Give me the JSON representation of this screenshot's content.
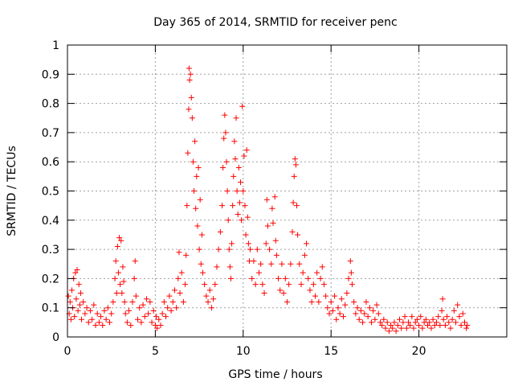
{
  "chart_data": {
    "type": "scatter",
    "title": "Day 365 of 2014, SRMTID for receiver penc",
    "xlabel": "GPS time / hours",
    "ylabel": "SRMTID / TECUs",
    "xlim": [
      0,
      25
    ],
    "ylim": [
      0,
      1
    ],
    "xticks": [
      0,
      5,
      10,
      15,
      20
    ],
    "xtick_labels": [
      "0",
      "5",
      "10",
      "15",
      "20"
    ],
    "yticks": [
      0,
      0.1,
      0.2,
      0.3,
      0.4,
      0.5,
      0.6,
      0.7,
      0.8,
      0.9,
      1
    ],
    "ytick_labels": [
      "0",
      "0.1",
      "0.2",
      "0.3",
      "0.4",
      "0.5",
      "0.6",
      "0.7",
      "0.8",
      "0.9",
      "1"
    ],
    "grid": true,
    "marker": "+",
    "color": "#ff0000",
    "series": [
      {
        "name": "SRMTID",
        "points": [
          [
            0.05,
            0.14
          ],
          [
            0.1,
            0.08
          ],
          [
            0.15,
            0.12
          ],
          [
            0.2,
            0.06
          ],
          [
            0.25,
            0.16
          ],
          [
            0.3,
            0.1
          ],
          [
            0.35,
            0.2
          ],
          [
            0.4,
            0.07
          ],
          [
            0.45,
            0.22
          ],
          [
            0.5,
            0.13
          ],
          [
            0.55,
            0.23
          ],
          [
            0.6,
            0.09
          ],
          [
            0.65,
            0.18
          ],
          [
            0.7,
            0.11
          ],
          [
            0.75,
            0.15
          ],
          [
            0.8,
            0.06
          ],
          [
            0.9,
            0.12
          ],
          [
            1.0,
            0.08
          ],
          [
            1.1,
            0.1
          ],
          [
            1.2,
            0.05
          ],
          [
            1.3,
            0.09
          ],
          [
            1.4,
            0.06
          ],
          [
            1.5,
            0.11
          ],
          [
            1.6,
            0.04
          ],
          [
            1.7,
            0.08
          ],
          [
            1.8,
            0.05
          ],
          [
            1.9,
            0.07
          ],
          [
            2.0,
            0.04
          ],
          [
            2.1,
            0.09
          ],
          [
            2.2,
            0.06
          ],
          [
            2.3,
            0.1
          ],
          [
            2.4,
            0.05
          ],
          [
            2.5,
            0.08
          ],
          [
            2.6,
            0.12
          ],
          [
            2.7,
            0.2
          ],
          [
            2.75,
            0.26
          ],
          [
            2.8,
            0.15
          ],
          [
            2.85,
            0.31
          ],
          [
            2.9,
            0.22
          ],
          [
            2.95,
            0.34
          ],
          [
            3.0,
            0.18
          ],
          [
            3.05,
            0.33
          ],
          [
            3.1,
            0.15
          ],
          [
            3.15,
            0.24
          ],
          [
            3.2,
            0.19
          ],
          [
            3.25,
            0.12
          ],
          [
            3.3,
            0.08
          ],
          [
            3.4,
            0.05
          ],
          [
            3.5,
            0.09
          ],
          [
            3.6,
            0.04
          ],
          [
            3.7,
            0.12
          ],
          [
            3.8,
            0.2
          ],
          [
            3.85,
            0.26
          ],
          [
            3.9,
            0.14
          ],
          [
            4.0,
            0.06
          ],
          [
            4.1,
            0.1
          ],
          [
            4.2,
            0.05
          ],
          [
            4.3,
            0.11
          ],
          [
            4.4,
            0.07
          ],
          [
            4.5,
            0.13
          ],
          [
            4.6,
            0.08
          ],
          [
            4.7,
            0.12
          ],
          [
            4.8,
            0.05
          ],
          [
            4.9,
            0.09
          ],
          [
            5.0,
            0.04
          ],
          [
            5.05,
            0.07
          ],
          [
            5.1,
            0.03
          ],
          [
            5.2,
            0.06
          ],
          [
            5.3,
            0.04
          ],
          [
            5.4,
            0.08
          ],
          [
            5.5,
            0.12
          ],
          [
            5.6,
            0.07
          ],
          [
            5.7,
            0.1
          ],
          [
            5.8,
            0.14
          ],
          [
            5.9,
            0.09
          ],
          [
            6.0,
            0.12
          ],
          [
            6.1,
            0.16
          ],
          [
            6.2,
            0.1
          ],
          [
            6.3,
            0.2
          ],
          [
            6.35,
            0.29
          ],
          [
            6.4,
            0.15
          ],
          [
            6.5,
            0.22
          ],
          [
            6.6,
            0.12
          ],
          [
            6.7,
            0.18
          ],
          [
            6.75,
            0.28
          ],
          [
            6.8,
            0.45
          ],
          [
            6.85,
            0.63
          ],
          [
            6.9,
            0.78
          ],
          [
            6.92,
            0.92
          ],
          [
            6.95,
            0.88
          ],
          [
            7.0,
            0.9
          ],
          [
            7.05,
            0.82
          ],
          [
            7.1,
            0.75
          ],
          [
            7.15,
            0.6
          ],
          [
            7.2,
            0.5
          ],
          [
            7.25,
            0.67
          ],
          [
            7.3,
            0.44
          ],
          [
            7.35,
            0.55
          ],
          [
            7.4,
            0.38
          ],
          [
            7.45,
            0.58
          ],
          [
            7.5,
            0.3
          ],
          [
            7.55,
            0.47
          ],
          [
            7.6,
            0.25
          ],
          [
            7.65,
            0.35
          ],
          [
            7.7,
            0.22
          ],
          [
            7.8,
            0.18
          ],
          [
            7.9,
            0.14
          ],
          [
            8.0,
            0.12
          ],
          [
            8.1,
            0.16
          ],
          [
            8.2,
            0.1
          ],
          [
            8.3,
            0.13
          ],
          [
            8.4,
            0.18
          ],
          [
            8.5,
            0.24
          ],
          [
            8.6,
            0.3
          ],
          [
            8.7,
            0.36
          ],
          [
            8.8,
            0.45
          ],
          [
            8.85,
            0.58
          ],
          [
            8.9,
            0.68
          ],
          [
            8.95,
            0.76
          ],
          [
            9.0,
            0.7
          ],
          [
            9.05,
            0.6
          ],
          [
            9.1,
            0.5
          ],
          [
            9.15,
            0.4
          ],
          [
            9.2,
            0.3
          ],
          [
            9.25,
            0.24
          ],
          [
            9.3,
            0.2
          ],
          [
            9.35,
            0.32
          ],
          [
            9.4,
            0.45
          ],
          [
            9.45,
            0.55
          ],
          [
            9.5,
            0.67
          ],
          [
            9.55,
            0.61
          ],
          [
            9.6,
            0.75
          ],
          [
            9.65,
            0.5
          ],
          [
            9.7,
            0.42
          ],
          [
            9.75,
            0.58
          ],
          [
            9.8,
            0.46
          ],
          [
            9.85,
            0.53
          ],
          [
            9.9,
            0.4
          ],
          [
            9.95,
            0.79
          ],
          [
            10.0,
            0.5
          ],
          [
            10.05,
            0.62
          ],
          [
            10.1,
            0.45
          ],
          [
            10.15,
            0.35
          ],
          [
            10.2,
            0.64
          ],
          [
            10.25,
            0.41
          ],
          [
            10.3,
            0.32
          ],
          [
            10.35,
            0.26
          ],
          [
            10.4,
            0.3
          ],
          [
            10.5,
            0.2
          ],
          [
            10.6,
            0.26
          ],
          [
            10.7,
            0.18
          ],
          [
            10.8,
            0.3
          ],
          [
            10.9,
            0.22
          ],
          [
            11.0,
            0.25
          ],
          [
            11.1,
            0.18
          ],
          [
            11.2,
            0.15
          ],
          [
            11.3,
            0.32
          ],
          [
            11.35,
            0.47
          ],
          [
            11.4,
            0.38
          ],
          [
            11.5,
            0.3
          ],
          [
            11.6,
            0.25
          ],
          [
            11.65,
            0.44
          ],
          [
            11.7,
            0.39
          ],
          [
            11.8,
            0.48
          ],
          [
            11.85,
            0.33
          ],
          [
            11.9,
            0.28
          ],
          [
            12.0,
            0.2
          ],
          [
            12.1,
            0.16
          ],
          [
            12.2,
            0.25
          ],
          [
            12.3,
            0.15
          ],
          [
            12.4,
            0.2
          ],
          [
            12.5,
            0.12
          ],
          [
            12.6,
            0.18
          ],
          [
            12.7,
            0.25
          ],
          [
            12.8,
            0.36
          ],
          [
            12.85,
            0.46
          ],
          [
            12.9,
            0.55
          ],
          [
            12.95,
            0.61
          ],
          [
            13.0,
            0.59
          ],
          [
            13.05,
            0.45
          ],
          [
            13.1,
            0.35
          ],
          [
            13.2,
            0.25
          ],
          [
            13.3,
            0.18
          ],
          [
            13.4,
            0.22
          ],
          [
            13.5,
            0.28
          ],
          [
            13.6,
            0.32
          ],
          [
            13.7,
            0.2
          ],
          [
            13.8,
            0.16
          ],
          [
            13.9,
            0.12
          ],
          [
            14.0,
            0.18
          ],
          [
            14.1,
            0.14
          ],
          [
            14.2,
            0.22
          ],
          [
            14.3,
            0.12
          ],
          [
            14.4,
            0.2
          ],
          [
            14.5,
            0.24
          ],
          [
            14.6,
            0.18
          ],
          [
            14.7,
            0.14
          ],
          [
            14.8,
            0.1
          ],
          [
            14.9,
            0.08
          ],
          [
            15.0,
            0.12
          ],
          [
            15.1,
            0.09
          ],
          [
            15.2,
            0.14
          ],
          [
            15.3,
            0.06
          ],
          [
            15.4,
            0.1
          ],
          [
            15.5,
            0.08
          ],
          [
            15.6,
            0.13
          ],
          [
            15.7,
            0.07
          ],
          [
            15.8,
            0.11
          ],
          [
            15.9,
            0.15
          ],
          [
            16.0,
            0.2
          ],
          [
            16.1,
            0.26
          ],
          [
            16.15,
            0.22
          ],
          [
            16.2,
            0.18
          ],
          [
            16.3,
            0.12
          ],
          [
            16.4,
            0.08
          ],
          [
            16.5,
            0.1
          ],
          [
            16.6,
            0.06
          ],
          [
            16.7,
            0.09
          ],
          [
            16.8,
            0.05
          ],
          [
            16.9,
            0.08
          ],
          [
            17.0,
            0.12
          ],
          [
            17.1,
            0.07
          ],
          [
            17.2,
            0.1
          ],
          [
            17.3,
            0.05
          ],
          [
            17.4,
            0.09
          ],
          [
            17.5,
            0.06
          ],
          [
            17.6,
            0.11
          ],
          [
            17.7,
            0.08
          ],
          [
            17.8,
            0.05
          ],
          [
            17.9,
            0.04
          ],
          [
            18.0,
            0.06
          ],
          [
            18.1,
            0.03
          ],
          [
            18.2,
            0.05
          ],
          [
            18.3,
            0.02
          ],
          [
            18.4,
            0.04
          ],
          [
            18.5,
            0.03
          ],
          [
            18.6,
            0.05
          ],
          [
            18.7,
            0.02
          ],
          [
            18.8,
            0.04
          ],
          [
            18.9,
            0.06
          ],
          [
            19.0,
            0.03
          ],
          [
            19.1,
            0.05
          ],
          [
            19.2,
            0.07
          ],
          [
            19.3,
            0.03
          ],
          [
            19.4,
            0.05
          ],
          [
            19.5,
            0.04
          ],
          [
            19.6,
            0.07
          ],
          [
            19.7,
            0.03
          ],
          [
            19.8,
            0.05
          ],
          [
            19.9,
            0.06
          ],
          [
            20.0,
            0.04
          ],
          [
            20.1,
            0.07
          ],
          [
            20.2,
            0.03
          ],
          [
            20.3,
            0.05
          ],
          [
            20.4,
            0.06
          ],
          [
            20.5,
            0.04
          ],
          [
            20.6,
            0.05
          ],
          [
            20.7,
            0.03
          ],
          [
            20.8,
            0.06
          ],
          [
            20.9,
            0.04
          ],
          [
            21.0,
            0.05
          ],
          [
            21.1,
            0.07
          ],
          [
            21.2,
            0.04
          ],
          [
            21.3,
            0.09
          ],
          [
            21.35,
            0.13
          ],
          [
            21.4,
            0.06
          ],
          [
            21.5,
            0.04
          ],
          [
            21.6,
            0.07
          ],
          [
            21.7,
            0.05
          ],
          [
            21.8,
            0.03
          ],
          [
            21.9,
            0.06
          ],
          [
            22.0,
            0.09
          ],
          [
            22.1,
            0.05
          ],
          [
            22.2,
            0.11
          ],
          [
            22.3,
            0.07
          ],
          [
            22.4,
            0.04
          ],
          [
            22.5,
            0.08
          ],
          [
            22.6,
            0.05
          ],
          [
            22.7,
            0.03
          ],
          [
            22.75,
            0.04
          ]
        ]
      }
    ]
  }
}
